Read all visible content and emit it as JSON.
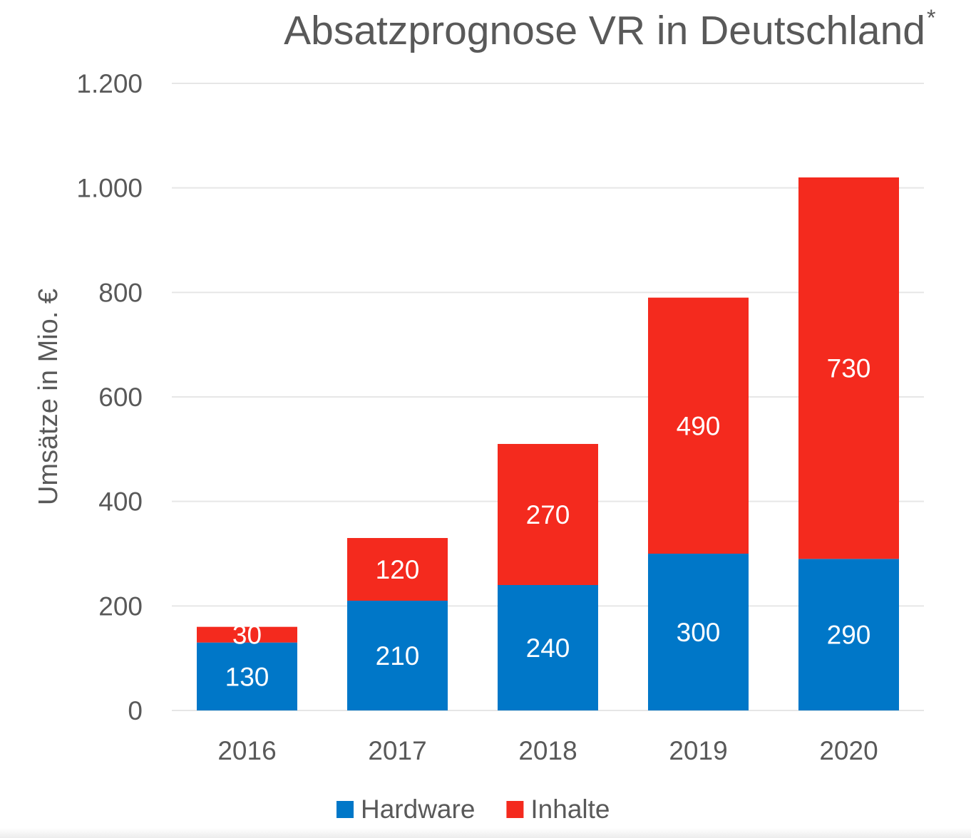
{
  "chart_data": {
    "type": "bar",
    "stacked": true,
    "title": "Absatzprognose VR in Deutschland",
    "title_marker": "*",
    "ylabel": "Umsätze in Mio. €",
    "xlabel": "",
    "ylim": [
      0,
      1200
    ],
    "yticks": [
      0,
      200,
      400,
      600,
      800,
      1000,
      1200
    ],
    "ytick_labels": [
      "0",
      "200",
      "400",
      "600",
      "800",
      "1.000",
      "1.200"
    ],
    "grid": true,
    "legend_position": "bottom",
    "categories": [
      "2016",
      "2017",
      "2018",
      "2019",
      "2020"
    ],
    "series": [
      {
        "name": "Hardware",
        "color": "#0077C8",
        "values": [
          130,
          210,
          240,
          300,
          290
        ]
      },
      {
        "name": "Inhalte",
        "color": "#F42A1E",
        "values": [
          30,
          120,
          270,
          490,
          730
        ]
      }
    ],
    "data_labels": true
  }
}
